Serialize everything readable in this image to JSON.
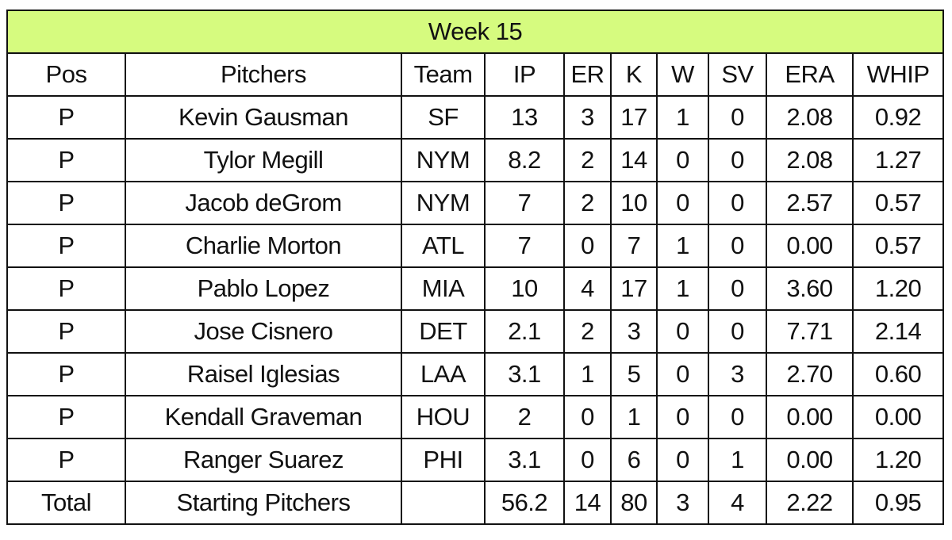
{
  "title": "Week 15",
  "colors": {
    "title_background": "#d6fb7f"
  },
  "columns": [
    "Pos",
    "Pitchers",
    "Team",
    "IP",
    "ER",
    "K",
    "W",
    "SV",
    "ERA",
    "WHIP"
  ],
  "rows": [
    [
      "P",
      "Kevin Gausman",
      "SF",
      "13",
      "3",
      "17",
      "1",
      "0",
      "2.08",
      "0.92"
    ],
    [
      "P",
      "Tylor Megill",
      "NYM",
      "8.2",
      "2",
      "14",
      "0",
      "0",
      "2.08",
      "1.27"
    ],
    [
      "P",
      "Jacob deGrom",
      "NYM",
      "7",
      "2",
      "10",
      "0",
      "0",
      "2.57",
      "0.57"
    ],
    [
      "P",
      "Charlie Morton",
      "ATL",
      "7",
      "0",
      "7",
      "1",
      "0",
      "0.00",
      "0.57"
    ],
    [
      "P",
      "Pablo Lopez",
      "MIA",
      "10",
      "4",
      "17",
      "1",
      "0",
      "3.60",
      "1.20"
    ],
    [
      "P",
      "Jose Cisnero",
      "DET",
      "2.1",
      "2",
      "3",
      "0",
      "0",
      "7.71",
      "2.14"
    ],
    [
      "P",
      "Raisel Iglesias",
      "LAA",
      "3.1",
      "1",
      "5",
      "0",
      "3",
      "2.70",
      "0.60"
    ],
    [
      "P",
      "Kendall Graveman",
      "HOU",
      "2",
      "0",
      "1",
      "0",
      "0",
      "0.00",
      "0.00"
    ],
    [
      "P",
      "Ranger Suarez",
      "PHI",
      "3.1",
      "0",
      "6",
      "0",
      "1",
      "0.00",
      "1.20"
    ]
  ],
  "total": [
    "Total",
    "Starting Pitchers",
    "",
    "56.2",
    "14",
    "80",
    "3",
    "4",
    "2.22",
    "0.95"
  ]
}
